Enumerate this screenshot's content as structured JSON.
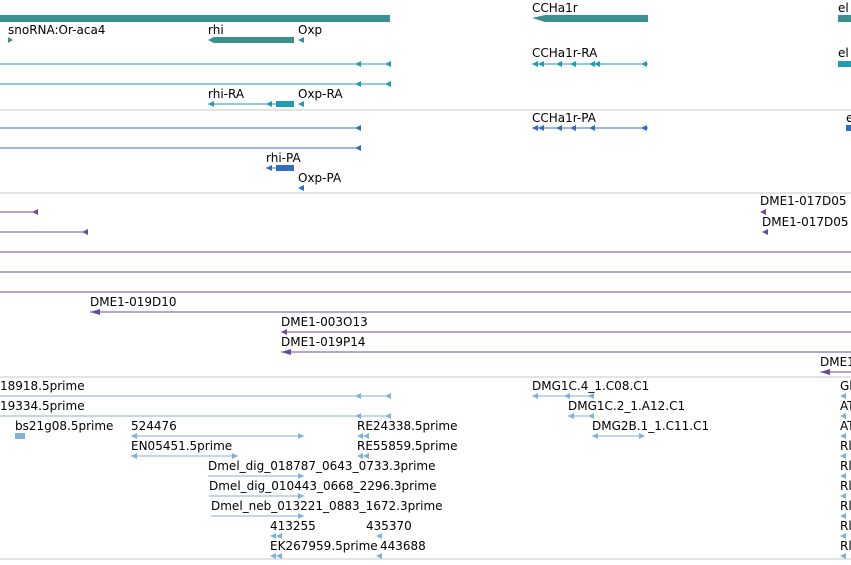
{
  "colors": {
    "gene": "#3a8f8f",
    "transcript_ra": "#1a9fb5",
    "transcript_pa": "#2e6fbf",
    "clone": "#6a4c9c",
    "est": "#7fb2d6",
    "separator": "#c8c8c8"
  },
  "tracks": {
    "genes": {
      "labels": [
        "snoRNA:Or-aca4",
        "rhi",
        "Oxp",
        "CCHa1r",
        "el"
      ]
    },
    "transcripts": {
      "labels": [
        "CCHa1r-RA",
        "rhi-RA",
        "Oxp-RA",
        "el"
      ]
    },
    "proteins": {
      "labels": [
        "CCHa1r-PA",
        "rhi-PA",
        "Oxp-PA",
        "e"
      ]
    },
    "clones": {
      "labels": [
        "DME1-017D05",
        "DME1-017D05",
        "DME1-019D10",
        "DME1-003O13",
        "DME1-019P14",
        "DME1"
      ]
    },
    "ests": {
      "labels": [
        "18918.5prime",
        "19334.5prime",
        "bs21g08.5prime",
        "524476",
        "EN05451.5prime",
        "RE24338.5prime",
        "RE55859.5prime",
        "Dmel_dig_018787_0643_0733.3prime",
        "Dmel_dig_010443_0668_2296.3prime",
        "Dmel_neb_013221_0883_1672.3prime",
        "413255",
        "435370",
        "EK267959.5prime",
        "443688",
        "DMG1C.4_1.C08.C1",
        "DMG1C.2_1.A12.C1",
        "DMG2B.1_1.C11.C1",
        "Gl",
        "AT",
        "AT",
        "Rl",
        "Rl",
        "Rl",
        "Rl",
        "Rl",
        "Rl"
      ]
    }
  }
}
